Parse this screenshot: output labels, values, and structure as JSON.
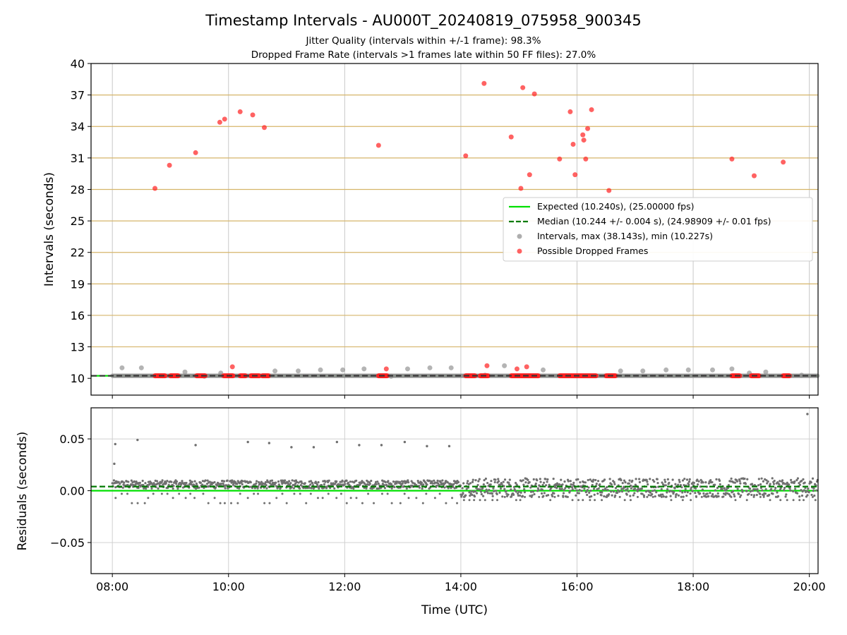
{
  "chart_data": [
    {
      "type": "scatter",
      "panel": "intervals",
      "title": "Timestamp Intervals - AU000T_20240819_075958_900345",
      "subtitle_lines": [
        "Jitter Quality (intervals within +/-1 frame): 98.3%",
        "Dropped Frame Rate (intervals >1 frames late within 50 FF files): 27.0%"
      ],
      "xlabel": "",
      "ylabel": "Intervals (seconds)",
      "xlim": [
        "07:38",
        "20:09"
      ],
      "ylim": [
        8.4,
        40
      ],
      "y_ticks": [
        "10",
        "13",
        "16",
        "19",
        "22",
        "25",
        "28",
        "31",
        "34",
        "37",
        "40"
      ],
      "x_ticks": [
        "08:00",
        "10:00",
        "12:00",
        "14:00",
        "16:00",
        "18:00",
        "20:00"
      ],
      "grid": "vertical lines at x ticks, horizontal goldenrod lines at y ticks",
      "legend_placement": "center-right",
      "colors": {
        "expected": "#00e000",
        "median": "#007a00",
        "intervals": "#8c8c8c",
        "dropped": "#ff2020",
        "hgrid": "#d6b56a"
      },
      "legend": [
        {
          "label": "Expected (10.240s), (25.00000 fps)",
          "style": "solid-line"
        },
        {
          "label": "Median (10.244 +/- 0.004 s), (24.98909 +/- 0.01 fps)",
          "style": "dashed-line"
        },
        {
          "label": "Intervals, max (38.143s), min (10.227s)",
          "style": "grey-marker"
        },
        {
          "label": "Possible Dropped Frames",
          "style": "red-marker"
        }
      ],
      "expected_y": 10.24,
      "median_y": 10.244,
      "series": [
        {
          "name": "Intervals, max (38.143s), min (10.227s)",
          "points": [
            [
              "08:10",
              11.0
            ],
            [
              "08:30",
              11.0
            ],
            [
              "09:15",
              10.6
            ],
            [
              "09:35",
              10.2
            ],
            [
              "09:52",
              10.5
            ],
            [
              "10:48",
              10.7
            ],
            [
              "11:12",
              10.7
            ],
            [
              "11:35",
              10.8
            ],
            [
              "11:58",
              10.8
            ],
            [
              "12:20",
              10.9
            ],
            [
              "12:48",
              10.2
            ],
            [
              "13:05",
              10.9
            ],
            [
              "13:28",
              11.0
            ],
            [
              "13:50",
              11.0
            ],
            [
              "14:25",
              10.3
            ],
            [
              "14:45",
              11.2
            ],
            [
              "15:25",
              10.8
            ],
            [
              "16:45",
              10.7
            ],
            [
              "17:08",
              10.7
            ],
            [
              "17:32",
              10.8
            ],
            [
              "17:55",
              10.8
            ],
            [
              "18:20",
              10.8
            ],
            [
              "18:40",
              10.9
            ],
            [
              "18:58",
              10.5
            ],
            [
              "19:15",
              10.6
            ],
            [
              "19:52",
              10.3
            ]
          ]
        },
        {
          "name": "Possible Dropped Frames",
          "points": [
            [
              "08:44",
              28.1
            ],
            [
              "08:59",
              30.3
            ],
            [
              "09:26",
              31.5
            ],
            [
              "09:51",
              34.4
            ],
            [
              "09:56",
              34.7
            ],
            [
              "10:12",
              35.4
            ],
            [
              "10:25",
              35.1
            ],
            [
              "10:37",
              33.9
            ],
            [
              "10:04",
              11.1
            ],
            [
              "12:35",
              32.2
            ],
            [
              "12:43",
              10.9
            ],
            [
              "14:05",
              31.2
            ],
            [
              "14:24",
              38.1
            ],
            [
              "14:27",
              11.2
            ],
            [
              "14:52",
              33.0
            ],
            [
              "14:58",
              10.9
            ],
            [
              "15:02",
              28.1
            ],
            [
              "15:04",
              37.7
            ],
            [
              "15:08",
              11.1
            ],
            [
              "15:11",
              29.4
            ],
            [
              "15:16",
              37.1
            ],
            [
              "15:42",
              30.9
            ],
            [
              "15:53",
              35.4
            ],
            [
              "15:56",
              32.3
            ],
            [
              "15:58",
              29.4
            ],
            [
              "16:06",
              33.2
            ],
            [
              "16:07",
              32.7
            ],
            [
              "16:09",
              30.9
            ],
            [
              "16:11",
              33.8
            ],
            [
              "16:15",
              35.6
            ],
            [
              "16:33",
              27.9
            ],
            [
              "18:40",
              30.9
            ],
            [
              "19:03",
              29.3
            ],
            [
              "19:33",
              30.6
            ]
          ],
          "clusters_at_expected": [
            [
              "08:44",
              "08:55"
            ],
            [
              "09:00",
              "09:08"
            ],
            [
              "09:27",
              "09:36"
            ],
            [
              "09:55",
              "10:05"
            ],
            [
              "10:12",
              "10:18"
            ],
            [
              "10:23",
              "10:32"
            ],
            [
              "10:35",
              "10:42"
            ],
            [
              "12:35",
              "12:44"
            ],
            [
              "14:05",
              "14:15"
            ],
            [
              "14:20",
              "14:28"
            ],
            [
              "14:52",
              "15:20"
            ],
            [
              "15:42",
              "16:20"
            ],
            [
              "16:30",
              "16:40"
            ],
            [
              "18:40",
              "18:48"
            ],
            [
              "19:00",
              "19:08"
            ],
            [
              "19:33",
              "19:40"
            ]
          ]
        }
      ]
    },
    {
      "type": "scatter",
      "panel": "residuals",
      "xlabel": "Time (UTC)",
      "ylabel": "Residuals (seconds)",
      "xlim": [
        "07:38",
        "20:09"
      ],
      "ylim": [
        -0.08,
        0.08
      ],
      "y_ticks": [
        "0.05",
        "0.00",
        "−0.05"
      ],
      "x_ticks": [
        "08:00",
        "10:00",
        "12:00",
        "14:00",
        "16:00",
        "18:00",
        "20:00"
      ],
      "grid": "both",
      "expected_y": 0.0,
      "median_y": 0.004,
      "colors": {
        "points": "#707070",
        "expected": "#00e000",
        "median": "#007a00",
        "grid": "#d0d0d0"
      },
      "outliers": [
        [
          "08:02",
          0.026
        ],
        [
          "08:03",
          0.045
        ],
        [
          "08:26",
          0.049
        ],
        [
          "09:26",
          0.044
        ],
        [
          "10:20",
          0.047
        ],
        [
          "10:42",
          0.046
        ],
        [
          "11:05",
          0.042
        ],
        [
          "11:28",
          0.042
        ],
        [
          "11:52",
          0.047
        ],
        [
          "12:15",
          0.044
        ],
        [
          "12:38",
          0.044
        ],
        [
          "13:02",
          0.047
        ],
        [
          "13:25",
          0.043
        ],
        [
          "13:48",
          0.043
        ],
        [
          "19:58",
          0.074
        ]
      ],
      "bands": [
        {
          "from": "08:00",
          "to": "14:00",
          "center": 0.006,
          "spread": 0.004,
          "low_dots": [
            -0.003,
            -0.007,
            -0.012
          ]
        },
        {
          "from": "14:00",
          "to": "20:09",
          "center": 0.003,
          "spread": 0.009,
          "low_dots": [
            -0.006,
            -0.009
          ]
        }
      ]
    }
  ]
}
